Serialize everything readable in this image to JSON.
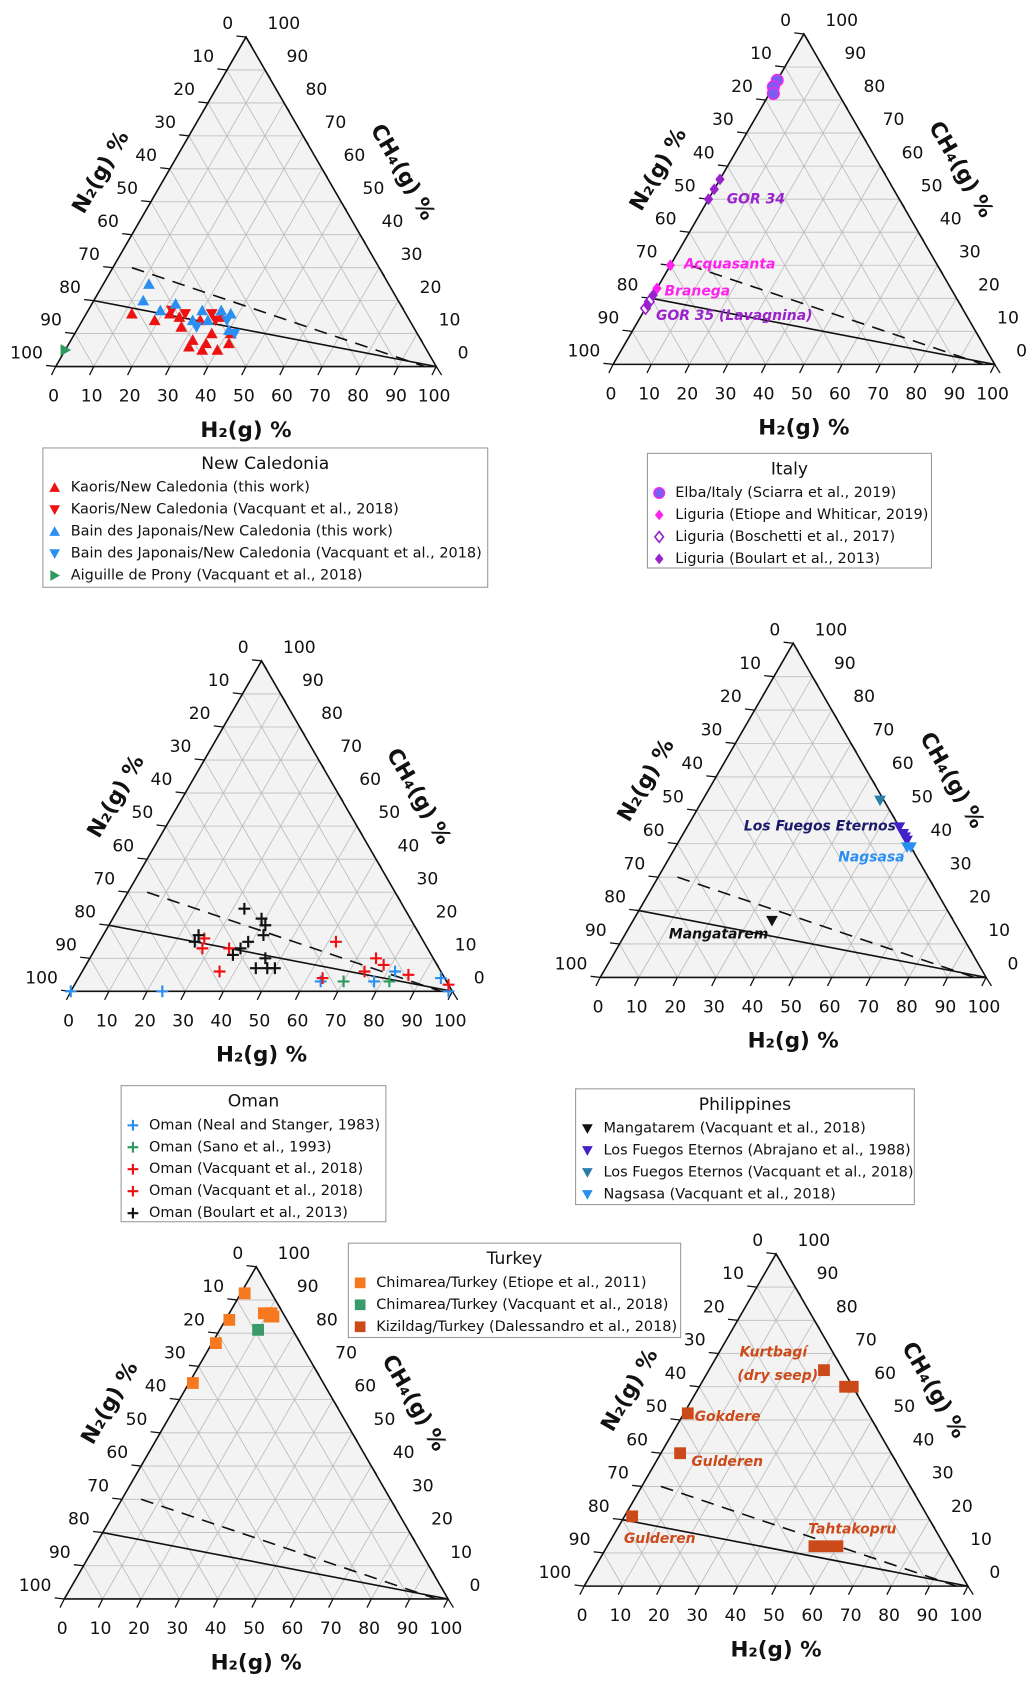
{
  "chart_data": [
    {
      "type": "ternary",
      "axis_labels": {
        "bottom": "H₂(g) %",
        "left": "N₂(g) %",
        "right": "CH₄(g) %"
      },
      "ticks": [
        0,
        10,
        20,
        30,
        40,
        50,
        60,
        70,
        80,
        90,
        100
      ],
      "reference_lines": [
        {
          "style": "solid",
          "from": [
            0,
            80,
            20
          ],
          "to": [
            100,
            0,
            0
          ]
        },
        {
          "style": "dashed",
          "from": [
            5,
            65,
            30
          ],
          "to": [
            97,
            3,
            0
          ]
        }
      ],
      "legend_title": "New Caledonia",
      "series": [
        {
          "name": "Kaoris/New Caledonia (this work)",
          "color": "#ee1111",
          "marker": "triangle-up",
          "values": [
            [
              12,
              72,
              16
            ],
            [
              19,
              67,
              14
            ],
            [
              22,
              62,
              16
            ],
            [
              27,
              61,
              12
            ],
            [
              32,
              60,
              8
            ],
            [
              32,
              62,
              6
            ],
            [
              36,
              57,
              7
            ],
            [
              36,
              54,
              10
            ],
            [
              31,
              55,
              14
            ],
            [
              36,
              49,
              15
            ],
            [
              42,
              51,
              7
            ],
            [
              25,
              60,
              15
            ],
            [
              36,
              59,
              5
            ],
            [
              40,
              55,
              5
            ],
            [
              41,
              49,
              10
            ]
          ]
        },
        {
          "name": "Kaoris/New Caledonia (Vacquant et al., 2018)",
          "color": "#ee1111",
          "marker": "triangle-down",
          "values": [
            [
              22,
              61,
              17
            ],
            [
              26,
              58,
              16
            ],
            [
              33,
              51,
              16
            ],
            [
              35,
              51,
              14
            ]
          ]
        },
        {
          "name": "Bain des Japonais/New Caledonia (this work)",
          "color": "#2a8ff0",
          "marker": "triangle-up",
          "values": [
            [
              12,
              63,
              25
            ],
            [
              13,
              67,
              20
            ],
            [
              19,
              64,
              17
            ],
            [
              22,
              59,
              19
            ],
            [
              29,
              57,
              14
            ],
            [
              33,
              53,
              14
            ],
            [
              35,
              48,
              17
            ],
            [
              38,
              46,
              16
            ],
            [
              40,
              49,
              11
            ],
            [
              30,
              53,
              17
            ]
          ]
        },
        {
          "name": "Bain des Japonais/New Caledonia (Vacquant et al., 2018)",
          "color": "#2a8ff0",
          "marker": "triangle-down",
          "values": [
            [
              31,
              57,
              12
            ],
            [
              38,
              48,
              14
            ],
            [
              42,
              48,
              10
            ]
          ]
        },
        {
          "name": "Aiguille de Prony (Vacquant et al., 2018)",
          "color": "#2e9a5e",
          "marker": "triangle-right",
          "values": [
            [
              0,
              95,
              5
            ]
          ]
        }
      ],
      "annotations": []
    },
    {
      "type": "ternary",
      "axis_labels": {
        "bottom": "H₂(g) %",
        "left": "N₂(g) %",
        "right": "CH₄(g) %"
      },
      "ticks": [
        0,
        10,
        20,
        30,
        40,
        50,
        60,
        70,
        80,
        90,
        100
      ],
      "reference_lines": [
        {
          "style": "solid",
          "from": [
            0,
            80,
            20
          ],
          "to": [
            100,
            0,
            0
          ]
        },
        {
          "style": "dashed",
          "from": [
            5,
            65,
            30
          ],
          "to": [
            97,
            3,
            0
          ]
        }
      ],
      "legend_title": "Italy",
      "series": [
        {
          "name": "Elba/Italy (Sciarra et al., 2019)",
          "color": "#7a5cf0",
          "marker": "circle",
          "values": [
            [
              0,
              14,
              86
            ],
            [
              0,
              16,
              84
            ],
            [
              1,
              17,
              82
            ]
          ]
        },
        {
          "name": "Liguria (Etiope and Whiticar, 2019)",
          "color": "#ff22ee",
          "marker": "diamond",
          "values": [
            [
              0,
              70,
              30
            ],
            [
              0,
              77,
              23
            ]
          ]
        },
        {
          "name": "Liguria (Boschetti et al., 2017)",
          "color": "#9a22cc",
          "marker": "diamond-open",
          "values": [
            [
              0,
              81,
              19
            ],
            [
              0,
              83,
              17
            ]
          ]
        },
        {
          "name": "Liguria (Boulart et al., 2013)",
          "color": "#9a22cc",
          "marker": "diamond",
          "values": [
            [
              0,
              44,
              56
            ],
            [
              0,
              47,
              53
            ],
            [
              0,
              50,
              50
            ],
            [
              0,
              82,
              18
            ],
            [
              0,
              79,
              21
            ]
          ]
        }
      ],
      "annotations": [
        {
          "text": "GOR 34",
          "color": "#9a22cc"
        },
        {
          "text": "Acquasanta",
          "color": "#ff22ee"
        },
        {
          "text": "Branega",
          "color": "#ff22ee"
        },
        {
          "text": "GOR 35 (Lavagnina)",
          "color": "#9a22cc"
        }
      ]
    },
    {
      "type": "ternary",
      "axis_labels": {
        "bottom": "H₂(g) %",
        "left": "N₂(g) %",
        "right": "CH₄(g) %"
      },
      "ticks": [
        0,
        10,
        20,
        30,
        40,
        50,
        60,
        70,
        80,
        90,
        100
      ],
      "reference_lines": [
        {
          "style": "solid",
          "from": [
            0,
            80,
            20
          ],
          "to": [
            100,
            0,
            0
          ]
        },
        {
          "style": "dashed",
          "from": [
            5,
            65,
            30
          ],
          "to": [
            97,
            3,
            0
          ]
        }
      ],
      "legend_title": "Oman",
      "series": [
        {
          "name": "Oman (Neal and Stanger, 1983)",
          "color": "#2a8ff0",
          "marker": "plus",
          "values": [
            [
              0,
              100,
              0
            ],
            [
              24,
              76,
              0
            ],
            [
              64,
              33,
              3
            ],
            [
              78,
              19,
              3
            ],
            [
              82,
              12,
              6
            ],
            [
              95,
              1,
              4
            ],
            [
              99,
              1,
              0
            ]
          ]
        },
        {
          "name": "Oman (Sano et al., 1993)",
          "color": "#2e9a5e",
          "marker": "plus",
          "values": [
            [
              70,
              27,
              3
            ],
            [
              82,
              15,
              3
            ]
          ]
        },
        {
          "name": "Oman (Vacquant et al., 2018)",
          "color": "#ee1111",
          "marker": "plus",
          "values": [
            [
              27,
              57,
              16
            ],
            [
              28,
              59,
              13
            ],
            [
              35,
              52,
              13
            ],
            [
              36,
              58,
              6
            ],
            [
              64,
              32,
              4
            ]
          ]
        },
        {
          "name": "Oman (Vacquant et al., 2018)",
          "color": "#ee1111",
          "marker": "plus",
          "values": [
            [
              62,
              23,
              15
            ],
            [
              75,
              15,
              10
            ],
            [
              78,
              14,
              8
            ],
            [
              74,
              20,
              6
            ],
            [
              86,
              9,
              5
            ],
            [
              98,
              0,
              2
            ]
          ]
        },
        {
          "name": "Oman (Boulart et al., 2013)",
          "color": "#111111",
          "marker": "plus",
          "values": [
            [
              33,
              42,
              25
            ],
            [
              39,
              39,
              22
            ],
            [
              41,
              39,
              20
            ],
            [
              42,
              41,
              17
            ],
            [
              39,
              46,
              15
            ],
            [
              38,
              49,
              13
            ],
            [
              37,
              52,
              11
            ],
            [
              25,
              60,
              15
            ],
            [
              25,
              58,
              17
            ],
            [
              46,
              44,
              10
            ],
            [
              48,
              45,
              7
            ],
            [
              50,
              43,
              7
            ],
            [
              45,
              48,
              7
            ]
          ]
        }
      ],
      "annotations": []
    },
    {
      "type": "ternary",
      "axis_labels": {
        "bottom": "H₂(g) %",
        "left": "N₂(g) %",
        "right": "CH₄(g) %"
      },
      "ticks": [
        0,
        10,
        20,
        30,
        40,
        50,
        60,
        70,
        80,
        90,
        100
      ],
      "reference_lines": [
        {
          "style": "solid",
          "from": [
            0,
            80,
            20
          ],
          "to": [
            100,
            0,
            0
          ]
        },
        {
          "style": "dashed",
          "from": [
            5,
            65,
            30
          ],
          "to": [
            97,
            3,
            0
          ]
        }
      ],
      "legend_title": "Philippines",
      "series": [
        {
          "name": "Mangatarem  (Vacquant et al., 2018)",
          "color": "#111111",
          "marker": "triangle-down",
          "values": [
            [
              36,
              47,
              17
            ]
          ]
        },
        {
          "name": "Los Fuegos Eternos (Abrajano et al., 1988)",
          "color": "#4420c8",
          "marker": "triangle-down",
          "values": [
            [
              55,
              0,
              45
            ],
            [
              57,
              0,
              43
            ],
            [
              58,
              0,
              42
            ],
            [
              59,
              0,
              41
            ]
          ]
        },
        {
          "name": "Los Fuegos Eternos (Vacquant et al., 2018)",
          "color": "#2a7fa8",
          "marker": "triangle-down",
          "values": [
            [
              46,
              1,
              53
            ]
          ]
        },
        {
          "name": "Nagsasa (Vacquant et al., 2018)",
          "color": "#2a8ff0",
          "marker": "triangle-down",
          "values": [
            [
              61,
              0,
              39
            ],
            [
              60,
              1,
              39
            ]
          ]
        }
      ],
      "annotations": [
        {
          "text": "Los Fuegos Eternos",
          "color": "#1a1a6a"
        },
        {
          "text": "Nagsasa",
          "color": "#2a8ff0"
        },
        {
          "text": "Mangatarem",
          "color": "#111111"
        }
      ]
    },
    {
      "type": "ternary",
      "axis_labels": {
        "bottom": "H₂(g) %",
        "left": "N₂(g) %",
        "right": "CH₄(g) %"
      },
      "ticks": [
        0,
        10,
        20,
        30,
        40,
        50,
        60,
        70,
        80,
        90,
        100
      ],
      "reference_lines": [
        {
          "style": "solid",
          "from": [
            0,
            80,
            20
          ],
          "to": [
            100,
            0,
            0
          ]
        },
        {
          "style": "dashed",
          "from": [
            5,
            65,
            30
          ],
          "to": [
            97,
            3,
            0
          ]
        }
      ],
      "legend_title": "Turkey",
      "series": [
        {
          "name": "Chimarea/Turkey (Etiope et al., 2011)",
          "color": "#f7791f",
          "marker": "square",
          "values": [
            [
              1,
              7,
              92
            ],
            [
              1,
              15,
              84
            ],
            [
              1,
              22,
              77
            ],
            [
              1,
              34,
              65
            ],
            [
              9,
              5,
              86
            ],
            [
              11,
              3,
              86
            ],
            [
              12,
              3,
              85
            ],
            [
              11,
              4,
              85
            ]
          ]
        },
        {
          "name": "Chimarea/Turkey (Vacquant et al., 2018)",
          "color": "#3a9a6a",
          "marker": "square",
          "values": [
            [
              10,
              9,
              81
            ]
          ]
        },
        {
          "name": "Kizildag/Turkey (Dalessandro et al., 2018)",
          "color": "#cc4a1a",
          "marker": "square",
          "values": []
        }
      ],
      "annotations": []
    },
    {
      "type": "ternary",
      "axis_labels": {
        "bottom": "H₂(g) %",
        "left": "N₂(g) %",
        "right": "CH₄(g) %"
      },
      "ticks": [
        0,
        10,
        20,
        30,
        40,
        50,
        60,
        70,
        80,
        90,
        100
      ],
      "reference_lines": [
        {
          "style": "solid",
          "from": [
            0,
            80,
            20
          ],
          "to": [
            100,
            0,
            0
          ]
        },
        {
          "style": "dashed",
          "from": [
            5,
            65,
            30
          ],
          "to": [
            97,
            3,
            0
          ]
        }
      ],
      "series": [
        {
          "color": "#cc4a1a",
          "marker": "square",
          "values": [
            [
              30,
              5,
              65
            ],
            [
              38,
              2,
              60
            ],
            [
              40,
              0,
              60
            ],
            [
              1,
              47,
              52
            ],
            [
              5,
              55,
              40
            ],
            [
              2,
              77,
              21
            ],
            [
              54,
              34,
              12
            ],
            [
              57,
              31,
              12
            ],
            [
              60,
              28,
              12
            ]
          ]
        }
      ],
      "annotations": [
        {
          "text": "Kurtbagí",
          "color": "#cc4a1a"
        },
        {
          "text": "(dry seep)",
          "color": "#cc4a1a"
        },
        {
          "text": "Gokdere",
          "color": "#cc4a1a"
        },
        {
          "text": "Gulderen",
          "color": "#cc4a1a"
        },
        {
          "text": "Gulderen",
          "color": "#cc4a1a"
        },
        {
          "text": "Tahtakopru",
          "color": "#cc4a1a"
        }
      ]
    }
  ]
}
